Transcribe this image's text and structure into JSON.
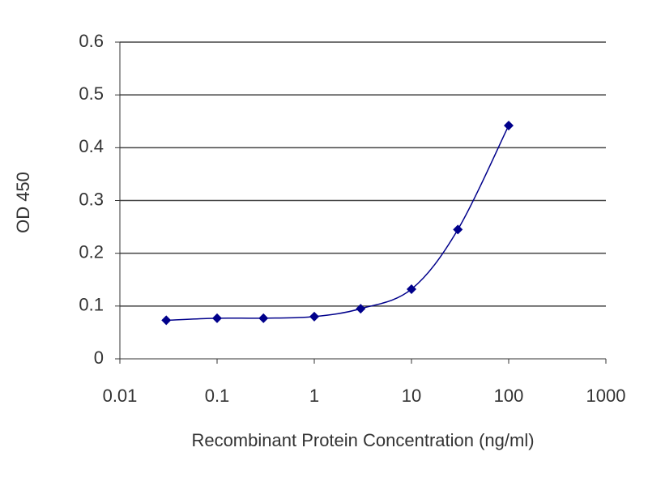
{
  "chart_data": {
    "type": "line",
    "x_label": "Recombinant Protein Concentration (ng/ml)",
    "y_label": "OD 450",
    "x": [
      0.03,
      0.1,
      0.3,
      1,
      3,
      10,
      30,
      100
    ],
    "values": [
      0.073,
      0.077,
      0.077,
      0.08,
      0.095,
      0.132,
      0.245,
      0.442
    ],
    "color": "#00008b",
    "x_log": true,
    "xlim": [
      0.01,
      1000
    ],
    "xticks": [
      0.01,
      0.1,
      1,
      10,
      100,
      1000
    ],
    "ylim": [
      0,
      0.6
    ],
    "yticks": [
      0,
      0.1,
      0.2,
      0.3,
      0.4,
      0.5,
      0.6
    ],
    "grid": true,
    "smooth": true
  }
}
